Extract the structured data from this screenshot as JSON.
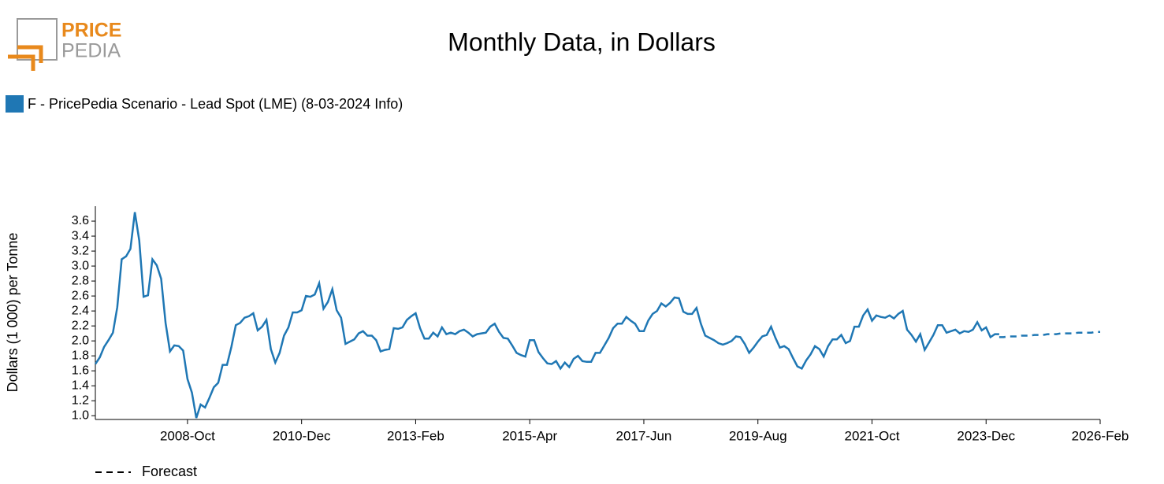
{
  "logo": {
    "line1": "PRICE",
    "line2": "PEDIA"
  },
  "chart_data": {
    "type": "line",
    "title": "Monthly Data, in Dollars",
    "y_label": "Dollars (1 000) per Tonne",
    "xlim": [
      "2007-Jan",
      "2026-Feb"
    ],
    "xticks": [
      "2008-Oct",
      "2010-Dec",
      "2013-Feb",
      "2015-Apr",
      "2017-Jun",
      "2019-Aug",
      "2021-Oct",
      "2023-Dec",
      "2026-Feb"
    ],
    "ylim": [
      0.95,
      3.8
    ],
    "yticks": [
      {
        "value": 1,
        "label": "1.0"
      },
      1.2,
      1.4,
      1.6,
      1.8,
      {
        "value": 2,
        "label": "2.0"
      },
      2.2,
      2.4,
      2.6,
      2.8,
      {
        "value": 3,
        "label": "3.0"
      },
      3.2,
      3.4,
      3.6
    ],
    "series": [
      {
        "name": "F - PricePedia Scenario - Lead Spot (LME) (8-03-2024 Info)",
        "color": "#1f77b4",
        "dashed": false,
        "x": [
          "2007-Jan",
          "2007-Feb",
          "2007-Mar",
          "2007-Apr",
          "2007-May",
          "2007-Jun",
          "2007-Jul",
          "2007-Aug",
          "2007-Sep",
          "2007-Oct",
          "2007-Nov",
          "2007-Dec",
          "2008-Jan",
          "2008-Feb",
          "2008-Mar",
          "2008-Apr",
          "2008-May",
          "2008-Jun",
          "2008-Jul",
          "2008-Aug",
          "2008-Sep",
          "2008-Oct",
          "2008-Nov",
          "2008-Dec",
          "2009-Jan",
          "2009-Feb",
          "2009-Mar",
          "2009-Apr",
          "2009-May",
          "2009-Jun",
          "2009-Jul",
          "2009-Aug",
          "2009-Sep",
          "2009-Oct",
          "2009-Nov",
          "2009-Dec",
          "2010-Jan",
          "2010-Feb",
          "2010-Mar",
          "2010-Apr",
          "2010-May",
          "2010-Jun",
          "2010-Jul",
          "2010-Aug",
          "2010-Sep",
          "2010-Oct",
          "2010-Nov",
          "2010-Dec",
          "2011-Jan",
          "2011-Feb",
          "2011-Mar",
          "2011-Apr",
          "2011-May",
          "2011-Jun",
          "2011-Jul",
          "2011-Aug",
          "2011-Sep",
          "2011-Oct",
          "2011-Nov",
          "2011-Dec",
          "2012-Jan",
          "2012-Feb",
          "2012-Mar",
          "2012-Apr",
          "2012-May",
          "2012-Jun",
          "2012-Jul",
          "2012-Aug",
          "2012-Sep",
          "2012-Oct",
          "2012-Nov",
          "2012-Dec",
          "2013-Jan",
          "2013-Feb",
          "2013-Mar",
          "2013-Apr",
          "2013-May",
          "2013-Jun",
          "2013-Jul",
          "2013-Aug",
          "2013-Sep",
          "2013-Oct",
          "2013-Nov",
          "2013-Dec",
          "2014-Jan",
          "2014-Feb",
          "2014-Mar",
          "2014-Apr",
          "2014-May",
          "2014-Jun",
          "2014-Jul",
          "2014-Aug",
          "2014-Sep",
          "2014-Oct",
          "2014-Nov",
          "2014-Dec",
          "2015-Jan",
          "2015-Feb",
          "2015-Mar",
          "2015-Apr",
          "2015-May",
          "2015-Jun",
          "2015-Jul",
          "2015-Aug",
          "2015-Sep",
          "2015-Oct",
          "2015-Nov",
          "2015-Dec",
          "2016-Jan",
          "2016-Feb",
          "2016-Mar",
          "2016-Apr",
          "2016-May",
          "2016-Jun",
          "2016-Jul",
          "2016-Aug",
          "2016-Sep",
          "2016-Oct",
          "2016-Nov",
          "2016-Dec",
          "2017-Jan",
          "2017-Feb",
          "2017-Mar",
          "2017-Apr",
          "2017-May",
          "2017-Jun",
          "2017-Jul",
          "2017-Aug",
          "2017-Sep",
          "2017-Oct",
          "2017-Nov",
          "2017-Dec",
          "2018-Jan",
          "2018-Feb",
          "2018-Mar",
          "2018-Apr",
          "2018-May",
          "2018-Jun",
          "2018-Jul",
          "2018-Aug",
          "2018-Sep",
          "2018-Oct",
          "2018-Nov",
          "2018-Dec",
          "2019-Jan",
          "2019-Feb",
          "2019-Mar",
          "2019-Apr",
          "2019-May",
          "2019-Jun",
          "2019-Jul",
          "2019-Aug",
          "2019-Sep",
          "2019-Oct",
          "2019-Nov",
          "2019-Dec",
          "2020-Jan",
          "2020-Feb",
          "2020-Mar",
          "2020-Apr",
          "2020-May",
          "2020-Jun",
          "2020-Jul",
          "2020-Aug",
          "2020-Sep",
          "2020-Oct",
          "2020-Nov",
          "2020-Dec",
          "2021-Jan",
          "2021-Feb",
          "2021-Mar",
          "2021-Apr",
          "2021-May",
          "2021-Jun",
          "2021-Jul",
          "2021-Aug",
          "2021-Sep",
          "2021-Oct",
          "2021-Nov",
          "2021-Dec",
          "2022-Jan",
          "2022-Feb",
          "2022-Mar",
          "2022-Apr",
          "2022-May",
          "2022-Jun",
          "2022-Jul",
          "2022-Aug",
          "2022-Sep",
          "2022-Oct",
          "2022-Nov",
          "2022-Dec",
          "2023-Jan",
          "2023-Feb",
          "2023-Mar",
          "2023-Apr",
          "2023-May",
          "2023-Jun",
          "2023-Jul",
          "2023-Aug",
          "2023-Sep",
          "2023-Oct",
          "2023-Nov",
          "2023-Dec",
          "2024-Jan",
          "2024-Feb",
          "2024-Mar"
        ],
        "values": [
          1.69,
          1.78,
          1.92,
          2.01,
          2.11,
          2.45,
          3.09,
          3.13,
          3.23,
          3.72,
          3.34,
          2.59,
          2.61,
          3.09,
          3.01,
          2.83,
          2.24,
          1.86,
          1.94,
          1.93,
          1.87,
          1.49,
          1.31,
          0.97,
          1.15,
          1.11,
          1.24,
          1.38,
          1.44,
          1.68,
          1.68,
          1.92,
          2.21,
          2.24,
          2.31,
          2.33,
          2.37,
          2.14,
          2.19,
          2.28,
          1.89,
          1.71,
          1.84,
          2.07,
          2.18,
          2.38,
          2.38,
          2.41,
          2.6,
          2.59,
          2.62,
          2.77,
          2.43,
          2.52,
          2.69,
          2.41,
          2.31,
          1.96,
          1.99,
          2.02,
          2.1,
          2.13,
          2.07,
          2.07,
          2.01,
          1.86,
          1.88,
          1.89,
          2.17,
          2.16,
          2.18,
          2.28,
          2.33,
          2.37,
          2.17,
          2.03,
          2.03,
          2.11,
          2.06,
          2.18,
          2.09,
          2.11,
          2.09,
          2.13,
          2.15,
          2.11,
          2.06,
          2.09,
          2.1,
          2.11,
          2.19,
          2.23,
          2.12,
          2.04,
          2.03,
          1.94,
          1.84,
          1.81,
          1.79,
          2.01,
          2.01,
          1.85,
          1.77,
          1.7,
          1.69,
          1.73,
          1.63,
          1.71,
          1.65,
          1.76,
          1.8,
          1.73,
          1.72,
          1.72,
          1.84,
          1.84,
          1.94,
          2.04,
          2.17,
          2.23,
          2.23,
          2.32,
          2.27,
          2.23,
          2.13,
          2.13,
          2.27,
          2.36,
          2.4,
          2.5,
          2.46,
          2.51,
          2.58,
          2.57,
          2.39,
          2.36,
          2.36,
          2.44,
          2.23,
          2.07,
          2.04,
          2.01,
          1.97,
          1.95,
          1.97,
          2.0,
          2.06,
          2.05,
          1.96,
          1.84,
          1.91,
          1.99,
          2.06,
          2.08,
          2.19,
          2.04,
          1.91,
          1.93,
          1.89,
          1.77,
          1.66,
          1.63,
          1.74,
          1.82,
          1.93,
          1.89,
          1.79,
          1.93,
          2.02,
          2.02,
          2.08,
          1.97,
          2.0,
          2.19,
          2.19,
          2.34,
          2.42,
          2.27,
          2.34,
          2.32,
          2.31,
          2.34,
          2.3,
          2.36,
          2.4,
          2.15,
          2.08,
          1.99,
          2.09,
          1.88,
          1.98,
          2.08,
          2.21,
          2.21,
          2.11,
          2.13,
          2.15,
          2.1,
          2.13,
          2.12,
          2.15,
          2.25,
          2.14,
          2.18,
          2.05,
          2.09,
          2.09
        ]
      },
      {
        "name": "Forecast",
        "color": "#1f77b4",
        "dashed": true,
        "x": [
          "2024-Mar",
          "2024-Apr",
          "2024-May",
          "2024-Jun",
          "2024-Jul",
          "2024-Aug",
          "2024-Sep",
          "2024-Oct",
          "2024-Nov",
          "2024-Dec",
          "2025-Jan",
          "2025-Feb",
          "2025-Mar",
          "2025-Apr",
          "2025-May",
          "2025-Jun",
          "2025-Jul",
          "2025-Aug",
          "2025-Sep",
          "2025-Oct",
          "2025-Nov",
          "2025-Dec",
          "2026-Jan",
          "2026-Feb"
        ],
        "values": [
          2.05,
          2.05,
          2.06,
          2.06,
          2.06,
          2.07,
          2.07,
          2.07,
          2.08,
          2.08,
          2.08,
          2.09,
          2.09,
          2.09,
          2.1,
          2.1,
          2.1,
          2.1,
          2.11,
          2.11,
          2.11,
          2.11,
          2.12,
          2.12
        ]
      }
    ]
  }
}
